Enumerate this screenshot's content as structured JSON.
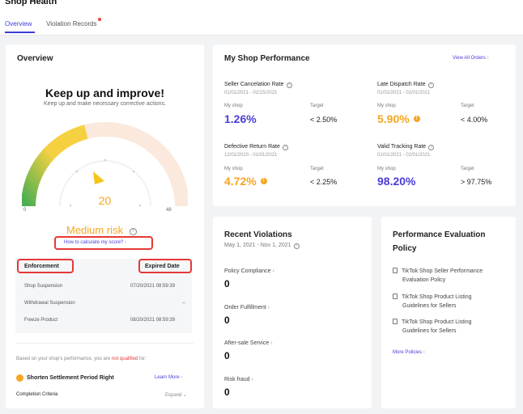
{
  "page": {
    "title": "Shop Health"
  },
  "tabs": [
    {
      "label": "Overview",
      "active": true
    },
    {
      "label": "Violation Records",
      "has_dot": true
    }
  ],
  "overview": {
    "title": "Overview",
    "heading": "Keep up and improve!",
    "subheading": "Keep up and make necessary corrective actions.",
    "gauge": {
      "score": "20",
      "min": "0",
      "max": "48",
      "level_fraction": 0.42
    },
    "risk_label": "Medium risk",
    "calc_link": "How to calculate my score?",
    "enforcement_header": "Enforcement",
    "expired_header": "Expired Date",
    "enforcements": [
      {
        "name": "Shop Suspension",
        "date": "07/20/2021 08:59:39"
      },
      {
        "name": "Withdrawal Suspension",
        "date": "--"
      },
      {
        "name": "Freeze Product",
        "date": "08/20/2021 08:59:39"
      }
    ],
    "qualification_prefix": "Based on your shop's performance, you are",
    "qualification_highlight": "not qualified",
    "qualification_suffix": "for:",
    "benefit": "Shorten Settlement Period Right",
    "learn_more": "Learn More",
    "criteria_label": "Completion Criteria",
    "expand": "Expand"
  },
  "performance": {
    "title": "My Shop Performance",
    "view_all": "View All Orders",
    "metrics": [
      {
        "name": "Seller Cancelation Rate",
        "dates": "01/01/2021 - 02/15/2021",
        "my_label": "My shop",
        "my_value": "1.26%",
        "target_label": "Target",
        "target_value": "< 2.50%",
        "status": "good"
      },
      {
        "name": "Late Dispatch Rate",
        "dates": "01/01/2021 - 02/01/2021",
        "my_label": "My shop",
        "my_value": "5.90%",
        "target_label": "Target",
        "target_value": "< 4.00%",
        "status": "warning"
      },
      {
        "name": "Defective Return Rate",
        "dates": "12/01/2020 - 01/01/2021",
        "my_label": "My shop",
        "my_value": "4.72%",
        "target_label": "Target",
        "target_value": "< 2.25%",
        "status": "warning"
      },
      {
        "name": "Valid Tracking Rate",
        "dates": "01/01/2021 - 02/01/2021",
        "my_label": "My shop",
        "my_value": "98.20%",
        "target_label": "Target",
        "target_value": "> 97.75%",
        "status": "good"
      }
    ]
  },
  "violations": {
    "title": "Recent Violations",
    "range": "May 1, 2021 - Nov 1, 2021",
    "items": [
      {
        "label": "Policy Compliance",
        "value": "0"
      },
      {
        "label": "Order Fulfillment",
        "value": "0"
      },
      {
        "label": "After-sale Service",
        "value": "0"
      },
      {
        "label": "Risk fraud",
        "value": "0"
      }
    ]
  },
  "policy": {
    "title_line1": "Performance Evaluation",
    "title_line2": "Policy",
    "items": [
      {
        "line1": "TikTok Shop Seller Performance",
        "line2": "Evaluation Policy"
      },
      {
        "line1": "TikTok Shop Product Listing",
        "line2": "Guidelines for Sellers"
      },
      {
        "line1": "TikTok Shop Product Listing",
        "line2": "Guidelines for Sellers"
      }
    ],
    "more": "More Policies"
  },
  "colors": {
    "accent": "#4a3dd6",
    "warning": "#f5a623",
    "highlight": "#e53935"
  }
}
